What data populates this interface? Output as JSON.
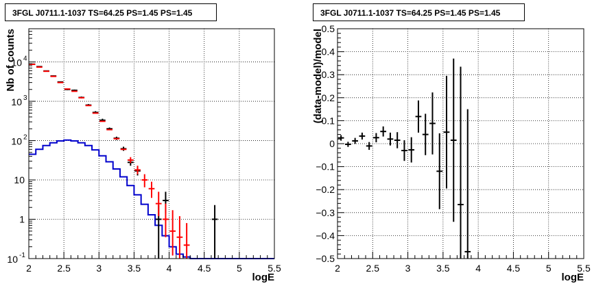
{
  "chart_data": [
    {
      "type": "line",
      "title": "3FGL J0711.1-1037 TS=64.25 PS=1.45 PS=1.45",
      "xlabel": "logE",
      "ylabel": "Nb of counts",
      "xlim": [
        2,
        5.5
      ],
      "ylim": [
        0.1,
        70000
      ],
      "yscale": "log",
      "grid": true,
      "x_ticks": [
        "2",
        "2.5",
        "3",
        "3.5",
        "4",
        "4.5",
        "5",
        "5.5"
      ],
      "y_ticks": [
        "10^{-1}",
        "1",
        "10",
        "10^{2}",
        "10^{3}",
        "10^{4}"
      ],
      "series": [
        {
          "color": "#000000",
          "style": "errorbar",
          "points": [
            {
              "x": 2.05,
              "y": 8800,
              "lo": 8600,
              "hi": 9000
            },
            {
              "x": 2.15,
              "y": 7600,
              "lo": 7400,
              "hi": 7800
            },
            {
              "x": 2.25,
              "y": 5900,
              "lo": 5750,
              "hi": 6050
            },
            {
              "x": 2.35,
              "y": 4400,
              "lo": 4270,
              "hi": 4530
            },
            {
              "x": 2.45,
              "y": 3100,
              "lo": 3000,
              "hi": 3200
            },
            {
              "x": 2.55,
              "y": 2000,
              "lo": 1920,
              "hi": 2080
            },
            {
              "x": 2.65,
              "y": 1900,
              "lo": 1820,
              "hi": 1990
            },
            {
              "x": 2.75,
              "y": 1250,
              "lo": 1180,
              "hi": 1320
            },
            {
              "x": 2.85,
              "y": 800,
              "lo": 760,
              "hi": 850
            },
            {
              "x": 2.95,
              "y": 520,
              "lo": 490,
              "hi": 560
            },
            {
              "x": 3.05,
              "y": 330,
              "lo": 310,
              "hi": 360
            },
            {
              "x": 3.15,
              "y": 200,
              "lo": 185,
              "hi": 215
            },
            {
              "x": 3.25,
              "y": 115,
              "lo": 104,
              "hi": 126
            },
            {
              "x": 3.35,
              "y": 62,
              "lo": 55,
              "hi": 70
            },
            {
              "x": 3.45,
              "y": 28,
              "lo": 23,
              "hi": 34
            },
            {
              "x": 3.55,
              "y": 17,
              "lo": 13,
              "hi": 22
            },
            {
              "x": 3.85,
              "y": 1,
              "lo": 0.1,
              "hi": 2.3
            },
            {
              "x": 3.95,
              "y": 3,
              "lo": 1.4,
              "hi": 5
            },
            {
              "x": 4.65,
              "y": 1,
              "lo": 0.1,
              "hi": 2.3
            }
          ]
        },
        {
          "color": "#ff0000",
          "style": "errorbar",
          "points": [
            {
              "x": 2.05,
              "y": 8700
            },
            {
              "x": 2.15,
              "y": 7400
            },
            {
              "x": 2.25,
              "y": 5800
            },
            {
              "x": 2.35,
              "y": 4300
            },
            {
              "x": 2.45,
              "y": 3000
            },
            {
              "x": 2.55,
              "y": 2050
            },
            {
              "x": 2.65,
              "y": 1800
            },
            {
              "x": 2.75,
              "y": 1230
            },
            {
              "x": 2.85,
              "y": 780
            },
            {
              "x": 2.95,
              "y": 500
            },
            {
              "x": 3.05,
              "y": 310
            },
            {
              "x": 3.15,
              "y": 190
            },
            {
              "x": 3.25,
              "y": 112
            },
            {
              "x": 3.35,
              "y": 60
            },
            {
              "x": 3.45,
              "y": 32,
              "lo": 27,
              "hi": 38
            },
            {
              "x": 3.55,
              "y": 18,
              "lo": 14,
              "hi": 23
            },
            {
              "x": 3.65,
              "y": 10,
              "lo": 6.5,
              "hi": 14
            },
            {
              "x": 3.75,
              "y": 6,
              "lo": 3.5,
              "hi": 9
            },
            {
              "x": 3.85,
              "y": 2.5,
              "lo": 1.2,
              "hi": 5
            },
            {
              "x": 3.95,
              "y": 1,
              "lo": 0.35,
              "hi": 2.5
            },
            {
              "x": 4.05,
              "y": 0.5,
              "lo": 0.12,
              "hi": 1.7
            },
            {
              "x": 4.15,
              "y": 0.35,
              "lo": 0.1,
              "hi": 1.2
            },
            {
              "x": 4.25,
              "y": 0.22,
              "lo": 0.1,
              "hi": 0.8
            }
          ]
        },
        {
          "color": "#0000cc",
          "style": "step",
          "bin_width": 0.1,
          "bins_start": [
            2.0,
            2.1,
            2.2,
            2.3,
            2.4,
            2.5,
            2.6,
            2.7,
            2.8,
            2.9,
            3.0,
            3.1,
            3.2,
            3.3,
            3.4,
            3.5,
            3.6,
            3.7,
            3.8,
            3.9,
            4.0,
            4.1,
            4.2,
            4.3,
            4.4,
            4.5,
            4.6,
            4.7,
            4.8,
            4.9,
            5.0,
            5.1,
            5.2,
            5.3,
            5.4
          ],
          "values": [
            45,
            60,
            75,
            88,
            98,
            103,
            98,
            88,
            75,
            58,
            41,
            29,
            19,
            12,
            7.2,
            4.2,
            2.4,
            1.3,
            0.7,
            0.38,
            0.2,
            0.13,
            0.11,
            0.1,
            0.1,
            0.1,
            0.1,
            0.1,
            0.1,
            0.1,
            0.1,
            0.1,
            0.1,
            0.1,
            0.1
          ]
        }
      ]
    },
    {
      "type": "scatter",
      "title": "3FGL J0711.1-1037 TS=64.25 PS=1.45 PS=1.45",
      "xlabel": "logE",
      "ylabel": "(data-model)/model",
      "xlim": [
        2,
        5.5
      ],
      "ylim": [
        -0.5,
        0.5
      ],
      "grid": true,
      "x_ticks": [
        "2",
        "2.5",
        "3",
        "3.5",
        "4",
        "4.5",
        "5",
        "5.5"
      ],
      "y_ticks": [
        "−0.5",
        "−0.4",
        "−0.3",
        "−0.2",
        "−0.1",
        "0",
        "0.1",
        "0.2",
        "0.3",
        "0.4",
        "0.5"
      ],
      "series": [
        {
          "color": "#000000",
          "style": "errorbar",
          "points": [
            {
              "x": 2.05,
              "y": 0.025,
              "err": 0.012
            },
            {
              "x": 2.15,
              "y": -0.003,
              "err": 0.011
            },
            {
              "x": 2.25,
              "y": 0.012,
              "err": 0.013
            },
            {
              "x": 2.35,
              "y": 0.033,
              "err": 0.015
            },
            {
              "x": 2.45,
              "y": -0.01,
              "err": 0.017
            },
            {
              "x": 2.55,
              "y": 0.026,
              "err": 0.02
            },
            {
              "x": 2.65,
              "y": 0.053,
              "err": 0.022
            },
            {
              "x": 2.75,
              "y": 0.02,
              "err": 0.028
            },
            {
              "x": 2.85,
              "y": 0.015,
              "err": 0.035
            },
            {
              "x": 2.95,
              "y": -0.03,
              "err": 0.045
            },
            {
              "x": 3.05,
              "y": -0.027,
              "err": 0.055
            },
            {
              "x": 3.15,
              "y": 0.118,
              "err": 0.07
            },
            {
              "x": 3.25,
              "y": 0.04,
              "err": 0.09
            },
            {
              "x": 3.35,
              "y": 0.088,
              "err": 0.135
            },
            {
              "x": 3.45,
              "y": -0.12,
              "err": 0.165
            },
            {
              "x": 3.55,
              "y": 0.05,
              "err": 0.245
            },
            {
              "x": 3.65,
              "y": 0.015,
              "err": 0.355
            },
            {
              "x": 3.75,
              "y": -0.265,
              "err": 0.6
            },
            {
              "x": 3.85,
              "y": -0.47,
              "err": 0.62
            }
          ]
        }
      ]
    }
  ]
}
